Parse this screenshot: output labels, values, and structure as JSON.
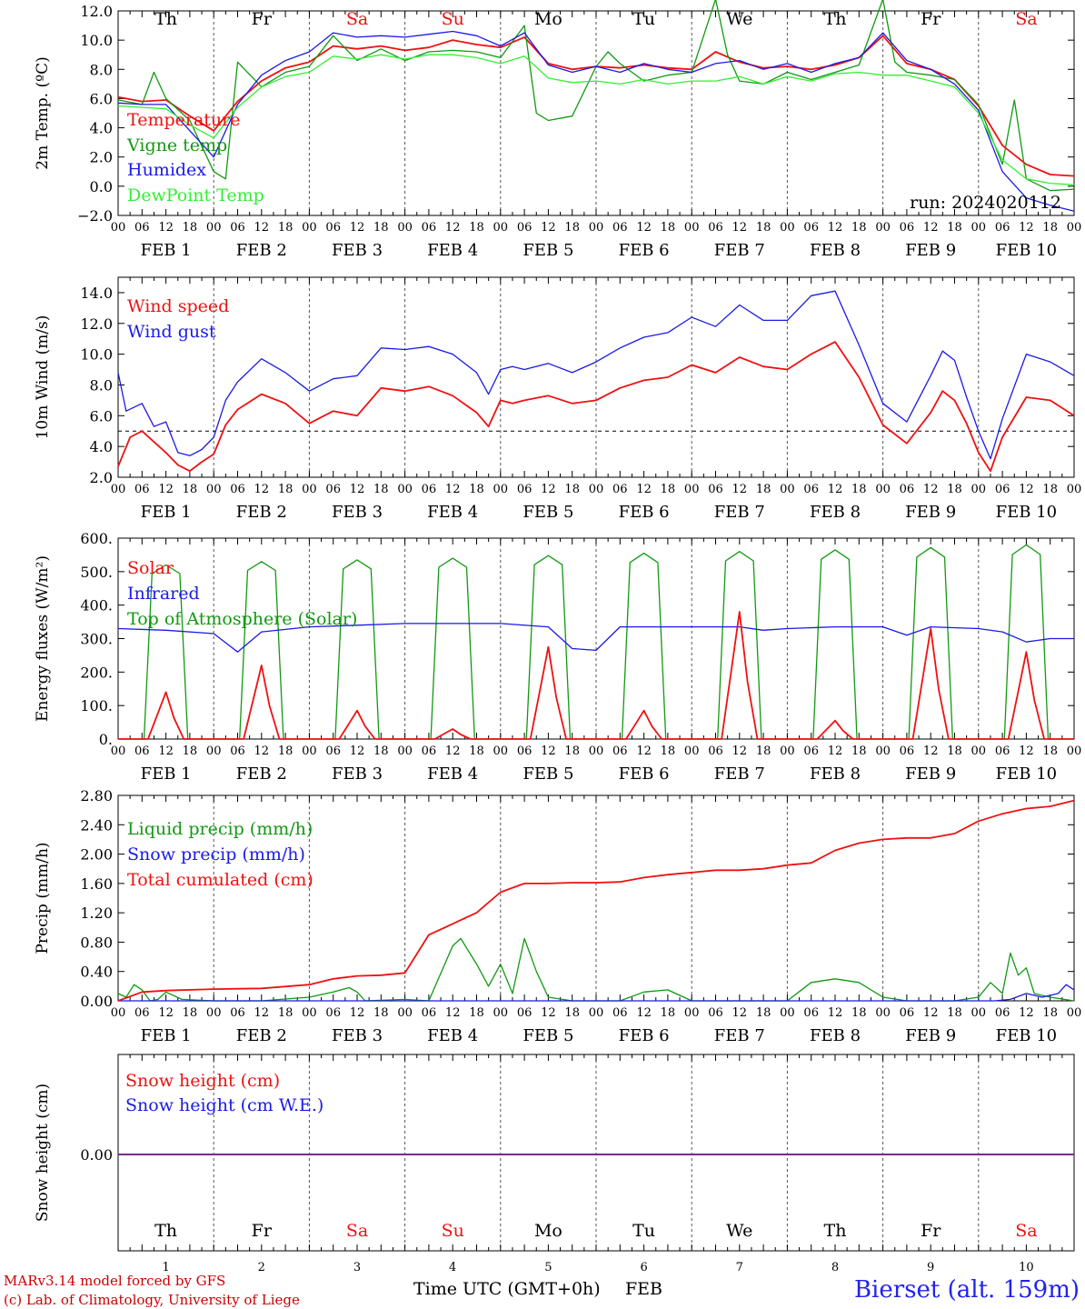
{
  "header": {
    "run_label": "run: 2024020112"
  },
  "footer": {
    "model_line": "MARv3.14 model forced by GFS",
    "copyright_line": "(c) Lab. of Climatology, University of Liege",
    "xaxis_title": "Time UTC (GMT+0h)",
    "month_label": "FEB",
    "station": "Bierset (alt. 159m)"
  },
  "colors": {
    "red": "#ee1111",
    "green": "#119911",
    "blue": "#1a1ae6",
    "lightgreen": "#33ee33",
    "purple": "#7a2a8a",
    "weekend": "#ee1111",
    "weekday": "#000000"
  },
  "days": [
    {
      "abbr": "Th",
      "date": "FEB  1",
      "num": "1",
      "weekend": false
    },
    {
      "abbr": "Fr",
      "date": "FEB  2",
      "num": "2",
      "weekend": false
    },
    {
      "abbr": "Sa",
      "date": "FEB  3",
      "num": "3",
      "weekend": true
    },
    {
      "abbr": "Su",
      "date": "FEB  4",
      "num": "4",
      "weekend": true
    },
    {
      "abbr": "Mo",
      "date": "FEB  5",
      "num": "5",
      "weekend": false
    },
    {
      "abbr": "Tu",
      "date": "FEB  6",
      "num": "6",
      "weekend": false
    },
    {
      "abbr": "We",
      "date": "FEB  7",
      "num": "7",
      "weekend": false
    },
    {
      "abbr": "Th",
      "date": "FEB  8",
      "num": "8",
      "weekend": false
    },
    {
      "abbr": "Fr",
      "date": "FEB  9",
      "num": "9",
      "weekend": false
    },
    {
      "abbr": "Sa",
      "date": "FEB 10",
      "num": "10",
      "weekend": true
    }
  ],
  "hour_ticks": [
    "00",
    "06",
    "12",
    "18"
  ],
  "chart_data": [
    {
      "type": "line",
      "ylabel": "2m Temp. (ºC)",
      "ylim": [
        -2,
        12
      ],
      "yticks": [
        "12.0",
        "10.0",
        "8.0",
        "6.0",
        "4.0",
        "2.0",
        "0.0",
        "−2.0"
      ],
      "x_unit": "hours since FEB 1 00 UTC",
      "xlim": [
        0,
        240
      ],
      "grid": "vertical dashed at 00 UTC",
      "series": [
        {
          "name": "Temperature",
          "color": "red",
          "x": [
            0,
            6,
            12,
            18,
            24,
            30,
            36,
            42,
            48,
            54,
            60,
            66,
            72,
            78,
            84,
            90,
            96,
            102,
            108,
            114,
            120,
            126,
            132,
            138,
            144,
            150,
            156,
            162,
            168,
            174,
            180,
            186,
            192,
            198,
            204,
            210,
            216,
            222,
            228,
            234,
            240
          ],
          "y": [
            6.1,
            5.8,
            5.9,
            4.8,
            3.8,
            5.8,
            7.2,
            8.1,
            8.5,
            9.6,
            9.4,
            9.6,
            9.3,
            9.5,
            10.0,
            9.7,
            9.5,
            10.2,
            8.4,
            8.0,
            8.2,
            8.1,
            8.3,
            8.1,
            8.0,
            9.2,
            8.5,
            8.1,
            8.2,
            8.0,
            8.3,
            8.8,
            10.3,
            8.4,
            8.0,
            7.3,
            5.5,
            2.8,
            1.5,
            0.8,
            0.7
          ]
        },
        {
          "name": "Vigne temp",
          "color": "green",
          "x": [
            0,
            6,
            9,
            12,
            18,
            24,
            27,
            30,
            36,
            42,
            48,
            54,
            60,
            66,
            72,
            78,
            84,
            90,
            96,
            102,
            105,
            108,
            114,
            120,
            123,
            126,
            132,
            138,
            144,
            150,
            153,
            156,
            162,
            168,
            174,
            180,
            186,
            192,
            195,
            198,
            204,
            210,
            216,
            222,
            225,
            228,
            234,
            240
          ],
          "y": [
            5.9,
            5.6,
            7.8,
            6.0,
            4.5,
            1.0,
            0.5,
            8.5,
            6.8,
            7.8,
            8.2,
            10.3,
            8.6,
            9.4,
            8.6,
            9.2,
            9.3,
            9.2,
            8.8,
            11.0,
            5.0,
            4.5,
            4.8,
            8.2,
            9.2,
            8.4,
            7.2,
            7.6,
            7.8,
            12.8,
            9.0,
            7.2,
            7.0,
            7.8,
            7.3,
            7.8,
            8.3,
            12.8,
            8.5,
            7.8,
            7.6,
            7.3,
            5.6,
            1.5,
            5.9,
            0.5,
            -0.3,
            -0.2
          ]
        },
        {
          "name": "Humidex",
          "color": "blue",
          "x": [
            0,
            6,
            12,
            18,
            24,
            30,
            36,
            42,
            48,
            54,
            60,
            66,
            72,
            78,
            84,
            90,
            96,
            102,
            108,
            114,
            120,
            126,
            132,
            138,
            144,
            150,
            156,
            162,
            168,
            174,
            180,
            186,
            192,
            198,
            204,
            210,
            216,
            222,
            228,
            234,
            240
          ],
          "y": [
            5.7,
            5.6,
            5.6,
            3.8,
            2.0,
            5.6,
            7.6,
            8.6,
            9.2,
            10.5,
            10.2,
            10.3,
            10.2,
            10.4,
            10.6,
            10.3,
            9.6,
            10.5,
            8.3,
            7.8,
            8.2,
            7.8,
            8.4,
            8.0,
            7.8,
            8.4,
            8.6,
            8.0,
            8.4,
            7.8,
            8.4,
            8.8,
            10.5,
            8.6,
            8.0,
            7.0,
            5.2,
            1.0,
            -0.8,
            -1.3,
            -1.7
          ]
        },
        {
          "name": "DewPoint Temp",
          "color": "lightgreen",
          "x": [
            0,
            6,
            12,
            18,
            24,
            30,
            36,
            42,
            48,
            54,
            60,
            66,
            72,
            78,
            84,
            90,
            96,
            102,
            108,
            114,
            120,
            126,
            132,
            138,
            144,
            150,
            156,
            162,
            168,
            174,
            180,
            186,
            192,
            198,
            204,
            210,
            216,
            222,
            228,
            234,
            240
          ],
          "y": [
            5.5,
            5.4,
            5.3,
            4.2,
            3.3,
            5.4,
            6.8,
            7.5,
            7.8,
            8.9,
            8.7,
            9.0,
            8.7,
            9.0,
            9.0,
            8.8,
            8.4,
            8.9,
            7.4,
            7.1,
            7.2,
            7.0,
            7.3,
            7.0,
            7.2,
            7.2,
            7.5,
            7.0,
            7.5,
            7.2,
            7.7,
            7.8,
            7.6,
            7.6,
            7.2,
            6.8,
            5.0,
            1.8,
            0.5,
            0.2,
            0.1
          ]
        }
      ]
    },
    {
      "type": "line",
      "ylabel": "10m Wind (m/s)",
      "ylim": [
        2,
        15
      ],
      "yticks": [
        "14.0",
        "12.0",
        "10.0",
        "8.0",
        "6.0",
        "4.0",
        "2.0"
      ],
      "reference_line": 5,
      "x_unit": "hours since FEB 1 00 UTC",
      "xlim": [
        0,
        240
      ],
      "series": [
        {
          "name": "Wind speed",
          "color": "red",
          "x": [
            0,
            3,
            6,
            9,
            12,
            15,
            18,
            21,
            24,
            27,
            30,
            36,
            42,
            48,
            54,
            60,
            66,
            72,
            78,
            84,
            90,
            93,
            96,
            99,
            102,
            108,
            114,
            120,
            126,
            132,
            138,
            144,
            150,
            156,
            162,
            168,
            174,
            180,
            186,
            192,
            198,
            204,
            207,
            210,
            213,
            216,
            219,
            222,
            228,
            234,
            240
          ],
          "y": [
            2.7,
            4.6,
            5.0,
            4.3,
            3.6,
            2.8,
            2.4,
            3.0,
            3.5,
            5.4,
            6.4,
            7.4,
            6.8,
            5.5,
            6.3,
            6.0,
            7.8,
            7.6,
            7.9,
            7.3,
            6.2,
            5.3,
            7.0,
            6.8,
            7.0,
            7.3,
            6.8,
            7.0,
            7.8,
            8.3,
            8.5,
            9.3,
            8.8,
            9.8,
            9.2,
            9.0,
            10.0,
            10.8,
            8.5,
            5.4,
            4.2,
            6.2,
            7.6,
            7.0,
            5.5,
            3.6,
            2.4,
            4.6,
            7.2,
            7.0,
            6.0
          ]
        },
        {
          "name": "Wind gust",
          "color": "blue",
          "x": [
            0,
            2,
            6,
            9,
            12,
            15,
            18,
            21,
            24,
            27,
            30,
            36,
            42,
            48,
            54,
            60,
            66,
            72,
            78,
            84,
            90,
            93,
            96,
            99,
            102,
            108,
            114,
            120,
            126,
            132,
            138,
            144,
            150,
            156,
            162,
            168,
            174,
            180,
            186,
            192,
            198,
            204,
            207,
            210,
            213,
            216,
            219,
            222,
            228,
            234,
            240
          ],
          "y": [
            8.8,
            6.3,
            6.8,
            5.3,
            5.6,
            3.6,
            3.4,
            3.8,
            4.6,
            7.0,
            8.2,
            9.7,
            8.8,
            7.6,
            8.4,
            8.6,
            10.4,
            10.3,
            10.5,
            10.0,
            8.8,
            7.4,
            9.0,
            9.2,
            9.0,
            9.4,
            8.8,
            9.5,
            10.4,
            11.1,
            11.4,
            12.4,
            11.8,
            13.2,
            12.2,
            12.2,
            13.8,
            14.1,
            10.6,
            6.8,
            5.6,
            8.6,
            10.2,
            9.6,
            7.2,
            5.0,
            3.2,
            5.8,
            10.0,
            9.5,
            8.6
          ]
        }
      ]
    },
    {
      "type": "line",
      "ylabel": "Energy fluxes (W/m²)",
      "ylim": [
        0,
        600
      ],
      "yticks": [
        "600.",
        "500.",
        "400.",
        "300.",
        "200.",
        "100.",
        "0."
      ],
      "x_unit": "hours since FEB 1 00 UTC",
      "xlim": [
        0,
        240
      ],
      "daily_peaks_top_of_atmosphere": [
        520,
        530,
        535,
        540,
        548,
        555,
        560,
        565,
        572,
        580
      ],
      "daily_peaks_solar": [
        140,
        220,
        85,
        30,
        275,
        85,
        380,
        55,
        330,
        260
      ],
      "series": [
        {
          "name": "Solar",
          "color": "red",
          "generated": "daily bells from daily_peaks_solar"
        },
        {
          "name": "Infrared",
          "color": "blue",
          "x": [
            0,
            12,
            24,
            30,
            36,
            48,
            60,
            72,
            84,
            96,
            108,
            114,
            120,
            126,
            132,
            144,
            156,
            162,
            168,
            180,
            192,
            198,
            204,
            216,
            222,
            228,
            234,
            240
          ],
          "y": [
            330,
            325,
            315,
            260,
            320,
            335,
            340,
            345,
            345,
            345,
            335,
            270,
            265,
            335,
            335,
            335,
            335,
            325,
            330,
            335,
            335,
            310,
            335,
            330,
            320,
            290,
            300,
            300
          ]
        },
        {
          "name": "Top of Atmosphere (Solar)",
          "color": "green",
          "generated": "daily trapezoids from daily_peaks_top_of_atmosphere"
        }
      ]
    },
    {
      "type": "line",
      "ylabel": "Precip (mm/h)",
      "ylim": [
        0,
        2.8
      ],
      "yticks": [
        "2.80",
        "2.40",
        "2.00",
        "1.60",
        "1.20",
        "0.80",
        "0.40",
        "0.00"
      ],
      "x_unit": "hours since FEB 1 00 UTC",
      "xlim": [
        0,
        240
      ],
      "series": [
        {
          "name": "Liquid precip (mm/h)",
          "color": "green",
          "x": [
            0,
            2,
            4,
            6,
            8,
            10,
            12,
            16,
            24,
            36,
            48,
            54,
            58,
            60,
            62,
            72,
            78,
            84,
            86,
            90,
            93,
            96,
            99,
            102,
            105,
            108,
            114,
            120,
            126,
            132,
            138,
            144,
            150,
            156,
            168,
            174,
            180,
            186,
            192,
            198,
            204,
            210,
            216,
            219,
            222,
            224,
            226,
            228,
            230,
            234,
            240
          ],
          "y": [
            0.1,
            0.05,
            0.22,
            0.15,
            0.0,
            0.02,
            0.12,
            0.02,
            0.0,
            0.0,
            0.05,
            0.12,
            0.18,
            0.12,
            0.0,
            0.02,
            0.0,
            0.75,
            0.85,
            0.5,
            0.2,
            0.5,
            0.1,
            0.85,
            0.4,
            0.05,
            0.0,
            0.0,
            0.0,
            0.12,
            0.15,
            0.0,
            0.0,
            0.0,
            0.0,
            0.25,
            0.3,
            0.25,
            0.05,
            0.0,
            0.0,
            0.0,
            0.05,
            0.25,
            0.1,
            0.65,
            0.35,
            0.45,
            0.1,
            0.05,
            0.0
          ]
        },
        {
          "name": "Snow precip (mm/h)",
          "color": "blue",
          "x": [
            0,
            220,
            224,
            228,
            232,
            236,
            238,
            240
          ],
          "y": [
            0,
            0,
            0.02,
            0.1,
            0.05,
            0.1,
            0.22,
            0.15
          ]
        },
        {
          "name": "Total cumulated (cm)",
          "color": "red",
          "x": [
            0,
            6,
            12,
            24,
            36,
            48,
            54,
            60,
            66,
            72,
            78,
            84,
            90,
            96,
            102,
            108,
            114,
            120,
            126,
            132,
            138,
            144,
            150,
            156,
            162,
            168,
            174,
            180,
            186,
            192,
            198,
            204,
            210,
            216,
            222,
            228,
            234,
            240
          ],
          "y": [
            0.0,
            0.12,
            0.14,
            0.16,
            0.17,
            0.22,
            0.3,
            0.34,
            0.35,
            0.38,
            0.9,
            1.05,
            1.2,
            1.48,
            1.6,
            1.6,
            1.61,
            1.61,
            1.62,
            1.68,
            1.72,
            1.75,
            1.78,
            1.78,
            1.8,
            1.85,
            1.88,
            2.05,
            2.15,
            2.2,
            2.22,
            2.22,
            2.28,
            2.45,
            2.55,
            2.62,
            2.65,
            2.73
          ]
        }
      ]
    },
    {
      "type": "line",
      "ylabel": "Snow height (cm)",
      "yticks": [
        "0.00"
      ],
      "x_unit": "hours since FEB 1 00 UTC",
      "xlim": [
        0,
        240
      ],
      "series": [
        {
          "name": "Snow height (cm)",
          "color": "red",
          "x": [
            0,
            240
          ],
          "y": [
            0,
            0
          ]
        },
        {
          "name": "Snow height (cm W.E.)",
          "color": "blue",
          "x": [
            0,
            240
          ],
          "y": [
            0,
            0
          ]
        }
      ]
    }
  ]
}
